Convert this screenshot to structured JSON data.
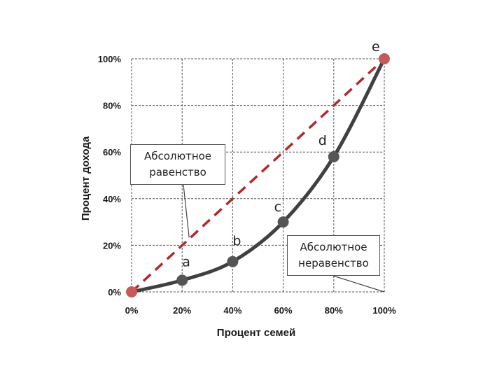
{
  "chart_data": {
    "type": "line",
    "xlabel": "Процент семей",
    "ylabel": "Процент дохода",
    "xlim": [
      0,
      100
    ],
    "ylim": [
      0,
      100
    ],
    "x_ticks": [
      "0%",
      "20%",
      "40%",
      "60%",
      "80%",
      "100%"
    ],
    "y_ticks": [
      "0%",
      "20%",
      "40%",
      "60%",
      "80%",
      "100%"
    ],
    "grid": true,
    "series": [
      {
        "name": "",
        "style": "dashed",
        "color": "#b02a2a",
        "x": [
          0,
          100
        ],
        "y": [
          0,
          100
        ]
      },
      {
        "name": "",
        "style": "solid",
        "color": "#404040",
        "x": [
          0,
          20,
          40,
          60,
          80,
          100
        ],
        "y": [
          0,
          5,
          13,
          30,
          58,
          100
        ],
        "point_labels": [
          "",
          "a",
          "b",
          "c",
          "d",
          "e"
        ]
      }
    ],
    "annotations": [
      {
        "line1": "Абсолютное",
        "line2": "равенство",
        "points_to": [
          20,
          20
        ]
      },
      {
        "line1": "Абсолютное",
        "line2": "неравенство",
        "points_to": [
          100,
          0
        ]
      }
    ],
    "colors": {
      "equality": "#b02a2a",
      "endpoint": "#c65a5a",
      "curve": "#404040",
      "point": "#555555",
      "grid": "#555555"
    }
  }
}
